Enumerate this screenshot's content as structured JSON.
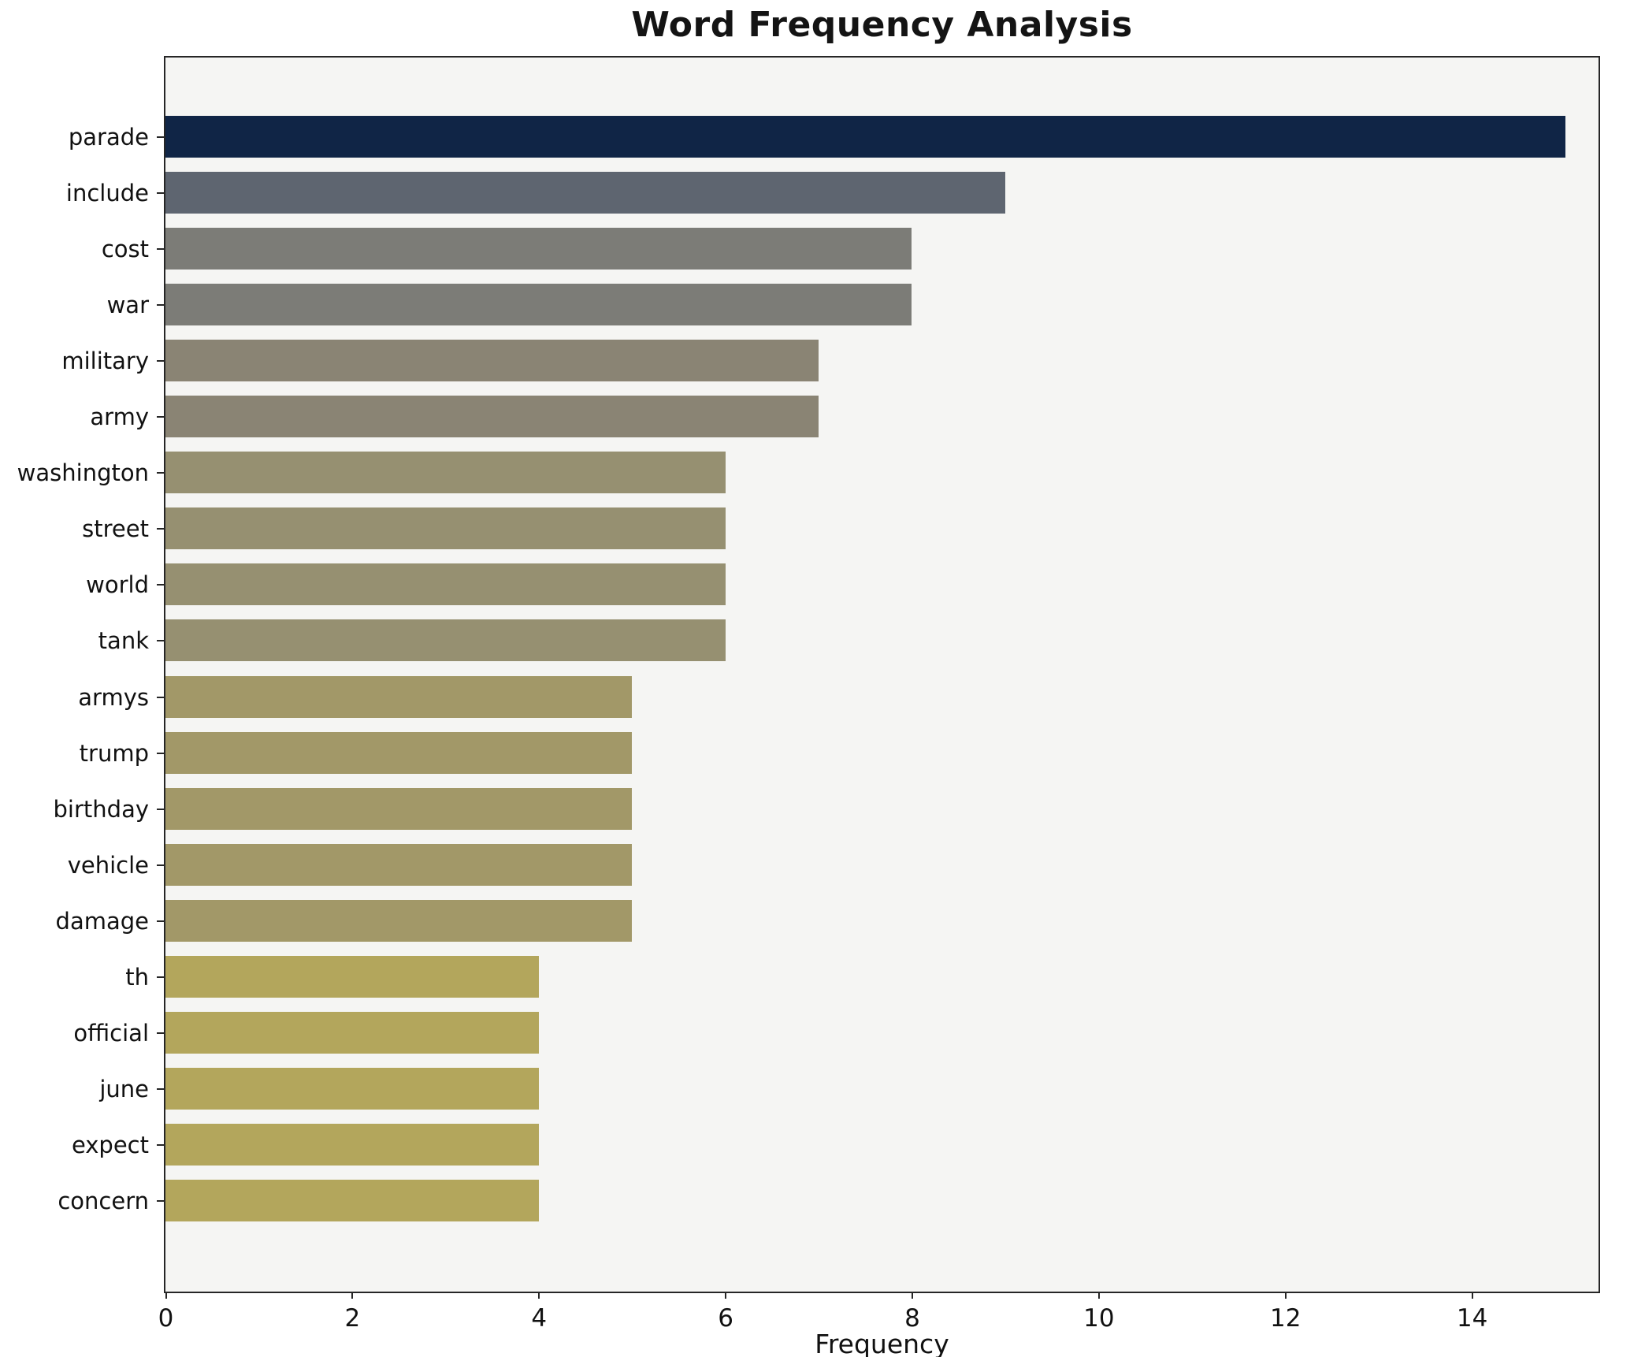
{
  "chart_data": {
    "type": "bar",
    "orientation": "horizontal",
    "title": "Word Frequency Analysis",
    "xlabel": "Frequency",
    "ylabel": "",
    "categories": [
      "parade",
      "include",
      "cost",
      "war",
      "military",
      "army",
      "washington",
      "street",
      "world",
      "tank",
      "armys",
      "trump",
      "birthday",
      "vehicle",
      "damage",
      "th",
      "official",
      "june",
      "expect",
      "concern"
    ],
    "values": [
      15,
      9,
      8,
      8,
      7,
      7,
      6,
      6,
      6,
      6,
      5,
      5,
      5,
      5,
      5,
      4,
      4,
      4,
      4,
      4
    ],
    "bar_colors": [
      "#102546",
      "#5e6570",
      "#7c7c77",
      "#7c7c77",
      "#8a8474",
      "#8a8474",
      "#969071",
      "#969071",
      "#969071",
      "#969071",
      "#a29868",
      "#a29868",
      "#a29868",
      "#a29868",
      "#a29868",
      "#b3a65c",
      "#b3a65c",
      "#b3a65c",
      "#b3a65c",
      "#b3a65c"
    ],
    "xlim": [
      0,
      15.35
    ],
    "xticks": [
      0,
      2,
      4,
      6,
      8,
      10,
      12,
      14
    ],
    "grid": false,
    "legend": "none",
    "plot_background": "#f5f5f3",
    "axis_color": "#262626"
  }
}
